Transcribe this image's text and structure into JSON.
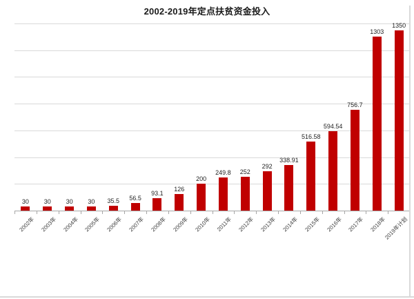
{
  "chart_data": {
    "type": "bar",
    "title": "2002-2019年定点扶贫资金投入",
    "categories": [
      "2002年",
      "2003年",
      "2004年",
      "2005年",
      "2006年",
      "2007年",
      "2008年",
      "2009年",
      "2010年",
      "2011年",
      "2012年",
      "2013年",
      "2014年",
      "2015年",
      "2016年",
      "2017年",
      "2018年",
      "2019年计划"
    ],
    "values": [
      30,
      30,
      30,
      30,
      35.5,
      56.5,
      93.1,
      126,
      200,
      249.8,
      252,
      292,
      338.91,
      516.58,
      594.54,
      756.7,
      1303,
      1350
    ],
    "value_labels": [
      "30",
      "30",
      "30",
      "30",
      "35.5",
      "56.5",
      "93.1",
      "126",
      "200",
      "249.8",
      "252",
      "292",
      "338.91",
      "516.58",
      "594.54",
      "756.7",
      "1303",
      "1350"
    ],
    "xlabel": "",
    "ylabel": "",
    "ylim": [
      0,
      1400
    ],
    "gridline_step": 200,
    "grid": true,
    "legend": false,
    "y_tick_labels_visible": false,
    "colors": {
      "bar": "#C00000",
      "gridline": "#D9D9D9",
      "axis": "#A6A6A6",
      "value_label": "#1F1F1F",
      "x_label": "#404040",
      "title": "#1A1A1A",
      "frame_border": "#D9D9D9"
    }
  }
}
